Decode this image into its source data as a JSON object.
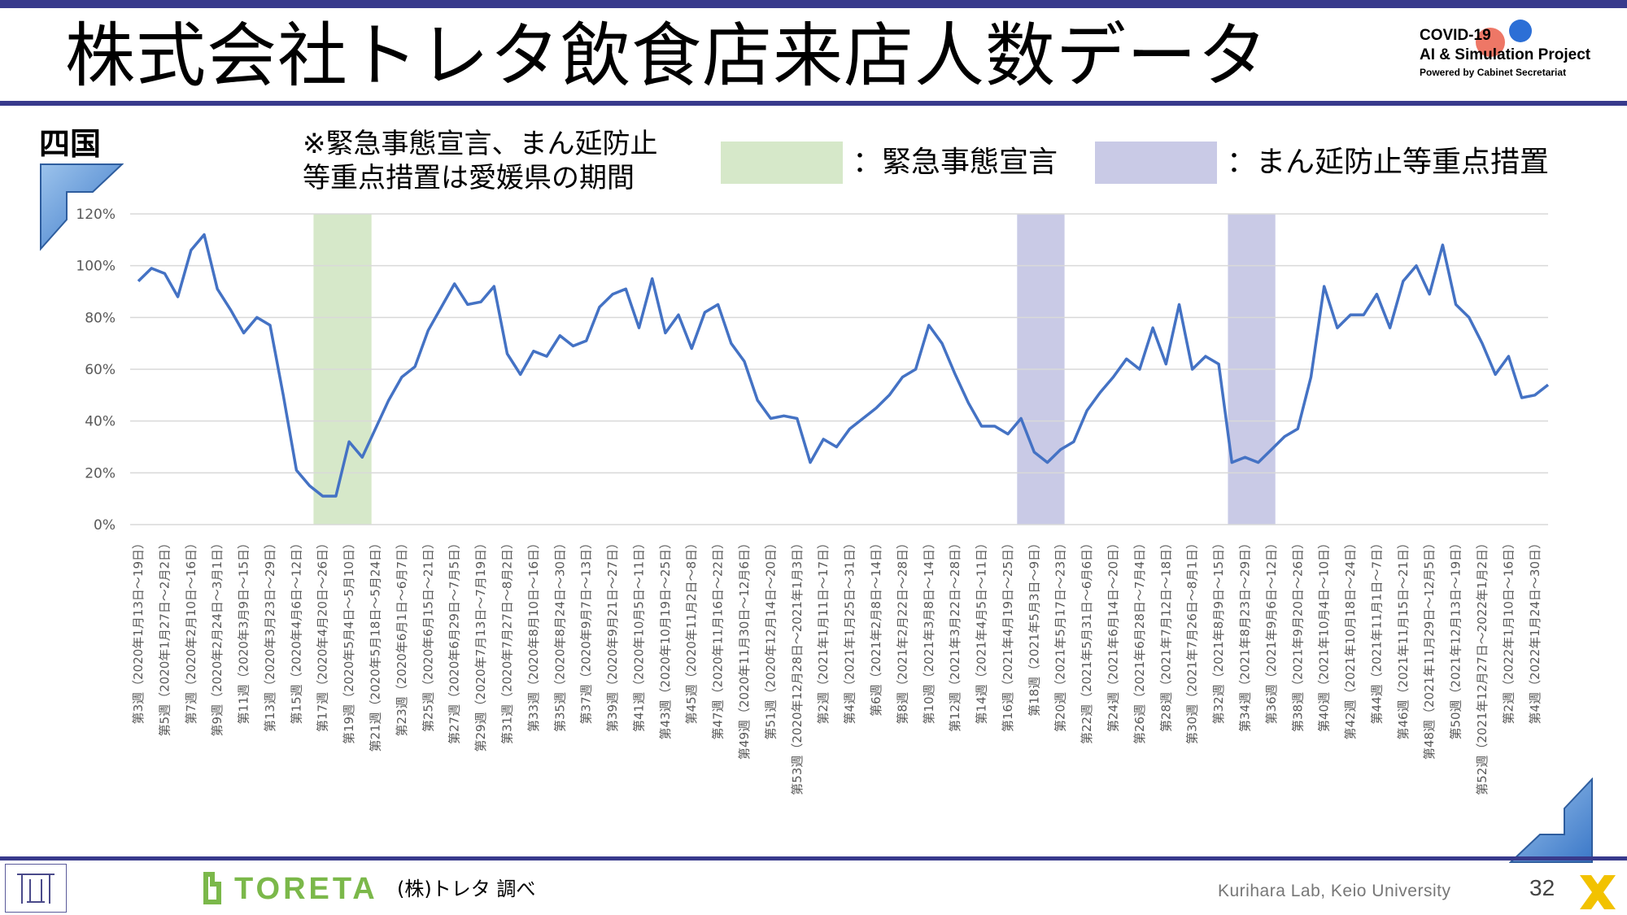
{
  "header": {
    "title": "株式会社トレタ飲食店来店人数データ",
    "badge_line1": "COVID-19",
    "badge_line2": "AI & Simulation Project",
    "badge_line3": "Powered by Cabinet Secretariat"
  },
  "region_label": "四国",
  "note_line1": "※緊急事態宣言、まん延防止",
  "note_line2": "等重点措置は愛媛県の期間",
  "legend": {
    "emergency_label": "：緊急事態宣言",
    "emergency_color": "#d6e8c9",
    "priority_label": "：まん延防止等重点措置",
    "priority_color": "#c9cae6"
  },
  "footer": {
    "brand": "TORETA",
    "survey": "(株)トレタ 調べ",
    "lab": "Kurihara Lab, Keio University",
    "page": "32"
  },
  "colors": {
    "accent": "#383a8c",
    "line": "#4472c4",
    "brand_green": "#7bb84a"
  },
  "chart_data": {
    "type": "line",
    "title": "",
    "xlabel": "",
    "ylabel": "",
    "ylim": [
      0,
      120
    ],
    "yticks": [
      "0%",
      "20%",
      "40%",
      "60%",
      "80%",
      "100%",
      "120%"
    ],
    "grid": true,
    "x_tick_labels": [
      "第3週（2020年1月13日～19日）",
      "第5週（2020年1月27日～2月2日）",
      "第7週（2020年2月10日～16日）",
      "第9週（2020年2月24日～3月1日）",
      "第11週（2020年3月9日～15日）",
      "第13週（2020年3月23日～29日）",
      "第15週（2020年4月6日～12日）",
      "第17週（2020年4月20日～26日）",
      "第19週（2020年5月4日～5月10日）",
      "第21週（2020年5月18日～5月24日）",
      "第23週（2020年6月1日～6月7日）",
      "第25週（2020年6月15日～21日）",
      "第27週（2020年6月29日～7月5日）",
      "第29週（2020年7月13日～7月19日）",
      "第31週（2020年7月27日～8月2日）",
      "第33週（2020年8月10日～16日）",
      "第35週（2020年8月24日～30日）",
      "第37週（2020年9月7日～13日）",
      "第39週（2020年9月21日～27日）",
      "第41週（2020年10月5日～11日）",
      "第43週（2020年10月19日～25日）",
      "第45週（2020年11月2日～8日）",
      "第47週（2020年11月16日～22日）",
      "第49週（2020年11月30日～12月6日）",
      "第51週（2020年12月14日～20日）",
      "第53週（2020年12月28日～2021年1月3日）",
      "第2週（2021年1月11日～17日）",
      "第4週（2021年1月25日～31日）",
      "第6週（2021年2月8日～14日）",
      "第8週（2021年2月22日～28日）",
      "第10週（2021年3月8日～14日）",
      "第12週（2021年3月22日～28日）",
      "第14週（2021年4月5日～11日）",
      "第16週（2021年4月19日～25日）",
      "第18週（2021年5月3日～9日）",
      "第20週（2021年5月17日～23日）",
      "第22週（2021年5月31日～6月6日）",
      "第24週（2021年6月14日～20日）",
      "第26週（2021年6月28日～7月4日）",
      "第28週（2021年7月12日～18日）",
      "第30週（2021年7月26日～8月1日）",
      "第32週（2021年8月9日～15日）",
      "第34週（2021年8月23日～29日）",
      "第36週（2021年9月6日～12日）",
      "第38週（2021年9月20日～26日）",
      "第40週（2021年10月4日～10日）",
      "第42週（2021年10月18日～24日）",
      "第44週（2021年11月1日～7日）",
      "第46週（2021年11月15日～21日）",
      "第48週（2021年11月29日～12月5日）",
      "第50週（2021年12月13日～19日）",
      "第52週（2021年12月27日～2022年1月2日）",
      "第2週（2022年1月10日～16日）",
      "第4週（2022年1月24日～30日）"
    ],
    "series": [
      {
        "values": [
          94,
          99,
          97,
          88,
          106,
          112,
          91,
          83,
          74,
          80,
          77,
          50,
          21,
          15,
          11,
          11,
          32,
          26,
          37,
          48,
          57,
          61,
          75,
          84,
          93,
          85,
          86,
          92,
          66,
          58,
          67,
          65,
          73,
          69,
          71,
          84,
          89,
          91,
          76,
          95,
          74,
          81,
          68,
          82,
          85,
          70,
          63,
          48,
          41,
          42,
          41,
          24,
          33,
          30,
          37,
          41,
          45,
          50,
          57,
          60,
          77,
          70,
          58,
          47,
          38,
          38,
          35,
          41,
          28,
          24,
          29,
          32,
          44,
          51,
          57,
          64,
          60,
          76,
          62,
          85,
          60,
          65,
          62,
          24,
          26,
          24,
          29,
          34,
          37,
          57,
          92,
          76,
          81,
          81,
          89,
          76,
          94,
          100,
          89,
          108,
          85,
          80,
          70,
          58,
          65,
          49,
          50,
          54
        ]
      }
    ],
    "shaded_periods": [
      {
        "type": "緊急事態宣言",
        "start_index": 13.3,
        "end_index": 17.7
      },
      {
        "type": "まん延防止等重点措置",
        "start_index": 66.7,
        "end_index": 70.3
      },
      {
        "type": "まん延防止等重点措置",
        "start_index": 82.7,
        "end_index": 86.3
      }
    ]
  }
}
